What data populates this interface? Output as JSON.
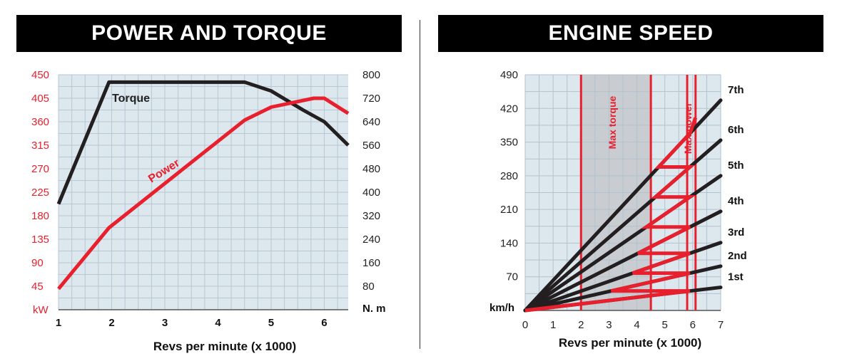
{
  "charts": [
    {
      "title": "POWER AND TORQUE"
    },
    {
      "title": "ENGINE SPEED"
    }
  ],
  "chart_data": [
    {
      "type": "line",
      "title": "POWER AND TORQUE",
      "xlabel": "Revs per minute (x 1000)",
      "xlim": [
        1,
        6.45
      ],
      "x_ticks": [
        1,
        2,
        3,
        4,
        5,
        6
      ],
      "y_left": {
        "unit": "kW",
        "ylim": [
          0,
          450
        ],
        "ticks": [
          45,
          90,
          135,
          180,
          225,
          270,
          315,
          360,
          405,
          450
        ],
        "color": "#e8202e"
      },
      "y_right": {
        "unit": "N. m",
        "ylim": [
          0,
          800
        ],
        "ticks": [
          80,
          160,
          240,
          320,
          400,
          480,
          560,
          640,
          720,
          800
        ]
      },
      "series": [
        {
          "name": "Torque",
          "axis": "right",
          "color": "#231f20",
          "x": [
            1,
            1.95,
            4.5,
            5.0,
            5.6,
            6.0,
            6.45
          ],
          "y": [
            360,
            775,
            775,
            745,
            680,
            640,
            560
          ]
        },
        {
          "name": "Power",
          "axis": "left",
          "color": "#e8202e",
          "x": [
            1,
            1.95,
            4.5,
            5.0,
            5.8,
            6.0,
            6.45
          ],
          "y": [
            40,
            157,
            363,
            388,
            405,
            405,
            376
          ]
        }
      ],
      "grid": true
    },
    {
      "type": "line",
      "title": "ENGINE SPEED",
      "xlabel": "Revs per minute (x 1000)",
      "ylabel": "km/h",
      "xlim": [
        0,
        7
      ],
      "ylim": [
        0,
        490
      ],
      "x_ticks": [
        0,
        1,
        2,
        3,
        4,
        5,
        6,
        7
      ],
      "y_ticks": [
        70,
        140,
        210,
        280,
        350,
        420,
        490
      ],
      "gears": [
        {
          "name": "1st",
          "value_at_7": 48
        },
        {
          "name": "2nd",
          "value_at_7": 92
        },
        {
          "name": "3rd",
          "value_at_7": 141
        },
        {
          "name": "4th",
          "value_at_7": 206
        },
        {
          "name": "5th",
          "value_at_7": 280
        },
        {
          "name": "6th",
          "value_at_7": 354
        },
        {
          "name": "7th",
          "value_at_7": 437
        }
      ],
      "shift_points": [
        {
          "from": 5.9,
          "to": 3.05
        },
        {
          "from": 5.9,
          "to": 3.85
        },
        {
          "from": 5.9,
          "to": 4.1
        },
        {
          "from": 5.9,
          "to": 4.3
        },
        {
          "from": 5.9,
          "to": 4.65
        },
        {
          "from": 5.9,
          "to": 4.6
        }
      ],
      "max_torque_band": {
        "label": "Max torque",
        "x": [
          2.0,
          4.5
        ]
      },
      "max_power_band": {
        "label": "Max power",
        "x": [
          5.8,
          6.1
        ]
      },
      "grid": true
    }
  ]
}
